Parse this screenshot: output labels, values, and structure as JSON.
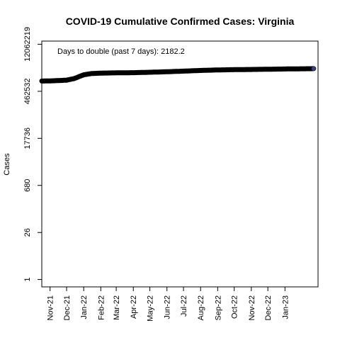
{
  "chart_data": {
    "type": "line",
    "title": "COVID-19 Cumulative Confirmed Cases: Virginia",
    "xlabel": "",
    "ylabel": "Cases",
    "y_scale": "log",
    "y_ticks": [
      1,
      26,
      680,
      17736,
      462532,
      12062219
    ],
    "y_tick_labels": [
      "1",
      "26",
      "680",
      "17736",
      "462532",
      "12062219"
    ],
    "ylim": [
      0.6,
      15000000
    ],
    "xlim": [
      "2021-10-17",
      "2023-03-02"
    ],
    "x_ticks": [
      "2021-11-01",
      "2021-12-01",
      "2022-01-01",
      "2022-02-01",
      "2022-03-01",
      "2022-04-01",
      "2022-05-01",
      "2022-06-01",
      "2022-07-01",
      "2022-08-01",
      "2022-09-01",
      "2022-10-01",
      "2022-11-01",
      "2022-12-01",
      "2023-01-01"
    ],
    "x_tick_labels": [
      "Nov-21",
      "Dec-21",
      "Jan-22",
      "Feb-22",
      "Mar-22",
      "Apr-22",
      "May-22",
      "Jun-22",
      "Jul-22",
      "Aug-22",
      "Sep-22",
      "Oct-22",
      "Nov-22",
      "Dec-22",
      "Jan-23"
    ],
    "annotation": "Days to double (past 7 days): 2182.2",
    "grid": false,
    "line_color": "#000000",
    "series": [
      {
        "x": [
          "2021-10-17",
          "2021-11-01",
          "2021-11-15",
          "2021-12-01",
          "2021-12-15",
          "2022-01-01",
          "2022-01-15",
          "2022-02-01",
          "2022-03-01",
          "2022-04-01",
          "2022-05-01",
          "2022-06-01",
          "2022-07-01",
          "2022-08-01",
          "2022-09-01",
          "2022-10-01",
          "2022-11-01",
          "2022-12-01",
          "2023-01-01",
          "2023-02-01",
          "2023-02-22"
        ],
        "values": [
          940000,
          950000,
          970000,
          1000000,
          1120000,
          1450000,
          1580000,
          1630000,
          1660000,
          1680000,
          1730000,
          1790000,
          1870000,
          1960000,
          2030000,
          2070000,
          2100000,
          2130000,
          2170000,
          2200000,
          2220000
        ]
      }
    ]
  }
}
